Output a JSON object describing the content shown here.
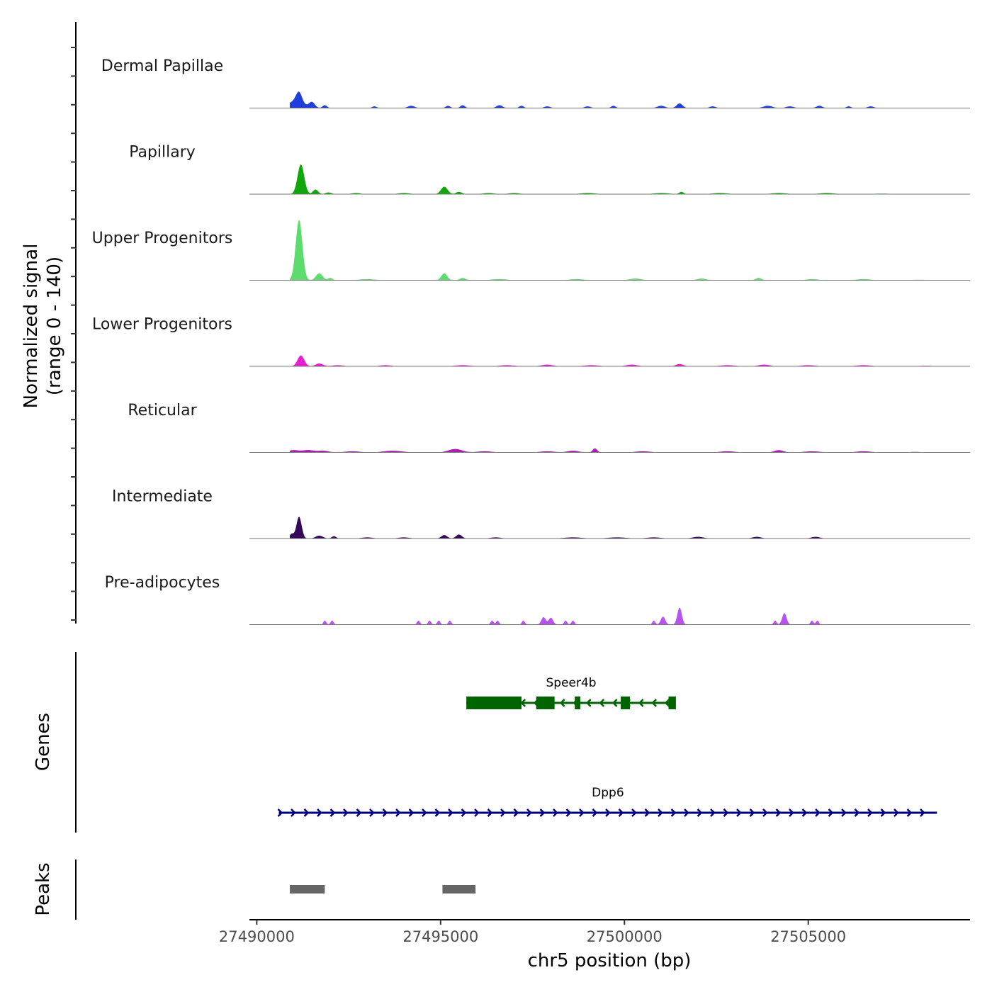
{
  "chart_data": {
    "type": "area",
    "title": "",
    "y_axis_title_line1": "Normalized signal",
    "y_axis_title_line2": "(range 0 - 140)",
    "ylim": [
      0,
      140
    ],
    "xlabel": "chr5 position (bp)",
    "xlim": [
      27489800,
      27509400
    ],
    "x_ticks": [
      {
        "value": 27490000,
        "label": "27490000"
      },
      {
        "value": 27495000,
        "label": "27495000"
      },
      {
        "value": 27500000,
        "label": "27500000"
      },
      {
        "value": 27505000,
        "label": "27505000"
      }
    ],
    "series": [
      {
        "name": "Dermal Papillae",
        "color": "#1f3fdc",
        "x_start": 27490900,
        "x_end": 27507200,
        "peaks": [
          [
            27491150,
            18,
            80
          ],
          [
            27491050,
            12,
            200
          ],
          [
            27491500,
            10,
            80
          ],
          [
            27491850,
            5,
            60
          ],
          [
            27493200,
            3,
            60
          ],
          [
            27494200,
            4,
            90
          ],
          [
            27495200,
            4,
            60
          ],
          [
            27495600,
            5,
            60
          ],
          [
            27496600,
            5,
            80
          ],
          [
            27497200,
            4,
            60
          ],
          [
            27497900,
            3,
            80
          ],
          [
            27499000,
            3,
            80
          ],
          [
            27499700,
            4,
            60
          ],
          [
            27501000,
            4,
            100
          ],
          [
            27501500,
            8,
            80
          ],
          [
            27502400,
            3,
            80
          ],
          [
            27503900,
            4,
            120
          ],
          [
            27504500,
            3,
            100
          ],
          [
            27505300,
            4,
            80
          ],
          [
            27506100,
            3,
            60
          ],
          [
            27506700,
            3,
            80
          ]
        ]
      },
      {
        "name": "Papillary",
        "color": "#11a60b",
        "x_start": 27490900,
        "x_end": 27508000,
        "peaks": [
          [
            27491200,
            52,
            90
          ],
          [
            27491600,
            8,
            70
          ],
          [
            27491950,
            3,
            80
          ],
          [
            27492700,
            2,
            120
          ],
          [
            27494000,
            2,
            150
          ],
          [
            27495100,
            13,
            90
          ],
          [
            27495500,
            4,
            80
          ],
          [
            27496300,
            2,
            150
          ],
          [
            27497000,
            2,
            150
          ],
          [
            27499000,
            2,
            200
          ],
          [
            27501000,
            2,
            200
          ],
          [
            27501550,
            4,
            60
          ],
          [
            27502600,
            2,
            200
          ],
          [
            27504200,
            2,
            200
          ],
          [
            27505500,
            2,
            200
          ],
          [
            27507000,
            1,
            200
          ]
        ]
      },
      {
        "name": "Upper Progenitors",
        "color": "#5bdc6d",
        "x_start": 27490900,
        "x_end": 27509400,
        "peaks": [
          [
            27491150,
            105,
            90
          ],
          [
            27491700,
            12,
            90
          ],
          [
            27492000,
            4,
            60
          ],
          [
            27493000,
            2,
            200
          ],
          [
            27495100,
            12,
            80
          ],
          [
            27495600,
            4,
            80
          ],
          [
            27496600,
            2,
            200
          ],
          [
            27498700,
            2,
            200
          ],
          [
            27500300,
            3,
            150
          ],
          [
            27502100,
            3,
            120
          ],
          [
            27503650,
            4,
            80
          ],
          [
            27505100,
            2,
            150
          ],
          [
            27506500,
            2,
            200
          ],
          [
            27508000,
            1,
            200
          ]
        ]
      },
      {
        "name": "Lower Progenitors",
        "color": "#e71ed4",
        "x_start": 27490900,
        "x_end": 27508700,
        "peaks": [
          [
            27491200,
            19,
            90
          ],
          [
            27491700,
            5,
            100
          ],
          [
            27492200,
            2,
            150
          ],
          [
            27493500,
            2,
            150
          ],
          [
            27495600,
            2,
            200
          ],
          [
            27496800,
            2,
            200
          ],
          [
            27497900,
            3,
            150
          ],
          [
            27499100,
            2,
            200
          ],
          [
            27500200,
            3,
            150
          ],
          [
            27501500,
            4,
            100
          ],
          [
            27502800,
            2,
            200
          ],
          [
            27503800,
            3,
            150
          ],
          [
            27505000,
            2,
            200
          ],
          [
            27506500,
            2,
            200
          ],
          [
            27508200,
            1,
            200
          ]
        ]
      },
      {
        "name": "Reticular",
        "color": "#ad1cb2",
        "x_start": 27490900,
        "x_end": 27508400,
        "peaks": [
          [
            27491000,
            4,
            150
          ],
          [
            27491400,
            4,
            150
          ],
          [
            27491800,
            3,
            150
          ],
          [
            27492600,
            2,
            200
          ],
          [
            27493700,
            3,
            250
          ],
          [
            27495400,
            6,
            180
          ],
          [
            27496200,
            2,
            200
          ],
          [
            27497900,
            2,
            200
          ],
          [
            27498600,
            3,
            150
          ],
          [
            27499200,
            7,
            60
          ],
          [
            27500500,
            2,
            200
          ],
          [
            27502800,
            2,
            200
          ],
          [
            27504200,
            4,
            120
          ],
          [
            27505100,
            2,
            200
          ],
          [
            27506500,
            2,
            200
          ],
          [
            27507900,
            1,
            150
          ]
        ]
      },
      {
        "name": "Intermediate",
        "color": "#35095a",
        "x_start": 27490900,
        "x_end": 27505900,
        "peaks": [
          [
            27491150,
            38,
            70
          ],
          [
            27490950,
            8,
            60
          ],
          [
            27491700,
            5,
            100
          ],
          [
            27492100,
            4,
            60
          ],
          [
            27493000,
            2,
            150
          ],
          [
            27494000,
            2,
            150
          ],
          [
            27495100,
            6,
            80
          ],
          [
            27495500,
            7,
            80
          ],
          [
            27496500,
            2,
            150
          ],
          [
            27498600,
            2,
            250
          ],
          [
            27499800,
            2,
            250
          ],
          [
            27500800,
            2,
            200
          ],
          [
            27502000,
            3,
            150
          ],
          [
            27503600,
            3,
            120
          ],
          [
            27505200,
            3,
            120
          ]
        ]
      },
      {
        "name": "Pre-adipocytes",
        "color": "#b753ee",
        "x_start": 27491800,
        "x_end": 27505300,
        "peaks": [
          [
            27491850,
            7,
            40
          ],
          [
            27492050,
            7,
            40
          ],
          [
            27494400,
            7,
            40
          ],
          [
            27494700,
            7,
            40
          ],
          [
            27494950,
            7,
            40
          ],
          [
            27495250,
            7,
            40
          ],
          [
            27496400,
            7,
            40
          ],
          [
            27496550,
            7,
            40
          ],
          [
            27497250,
            7,
            40
          ],
          [
            27497800,
            13,
            60
          ],
          [
            27498000,
            12,
            60
          ],
          [
            27498400,
            7,
            40
          ],
          [
            27498600,
            7,
            40
          ],
          [
            27500800,
            7,
            40
          ],
          [
            27501050,
            14,
            60
          ],
          [
            27501500,
            30,
            60
          ],
          [
            27504100,
            7,
            40
          ],
          [
            27504350,
            20,
            60
          ],
          [
            27505100,
            7,
            40
          ],
          [
            27505250,
            7,
            40
          ]
        ]
      }
    ],
    "genes_axis_title": "Genes",
    "genes": [
      {
        "name": "Speer4b",
        "strand": "-",
        "color": "#006400",
        "start": 27495700,
        "end": 27501400,
        "exons": [
          [
            27495700,
            27497200
          ],
          [
            27497600,
            27498100
          ],
          [
            27498650,
            27498800
          ],
          [
            27499900,
            27500150
          ],
          [
            27501200,
            27501400
          ]
        ]
      },
      {
        "name": "Dpp6",
        "strand": "+",
        "color": "#000080",
        "start": 27490600,
        "end": 27508500,
        "exons": []
      }
    ],
    "peaks_axis_title": "Peaks",
    "peak_regions": [
      [
        27490900,
        27491850
      ],
      [
        27495050,
        27495950
      ]
    ],
    "peak_color": "#666666"
  }
}
